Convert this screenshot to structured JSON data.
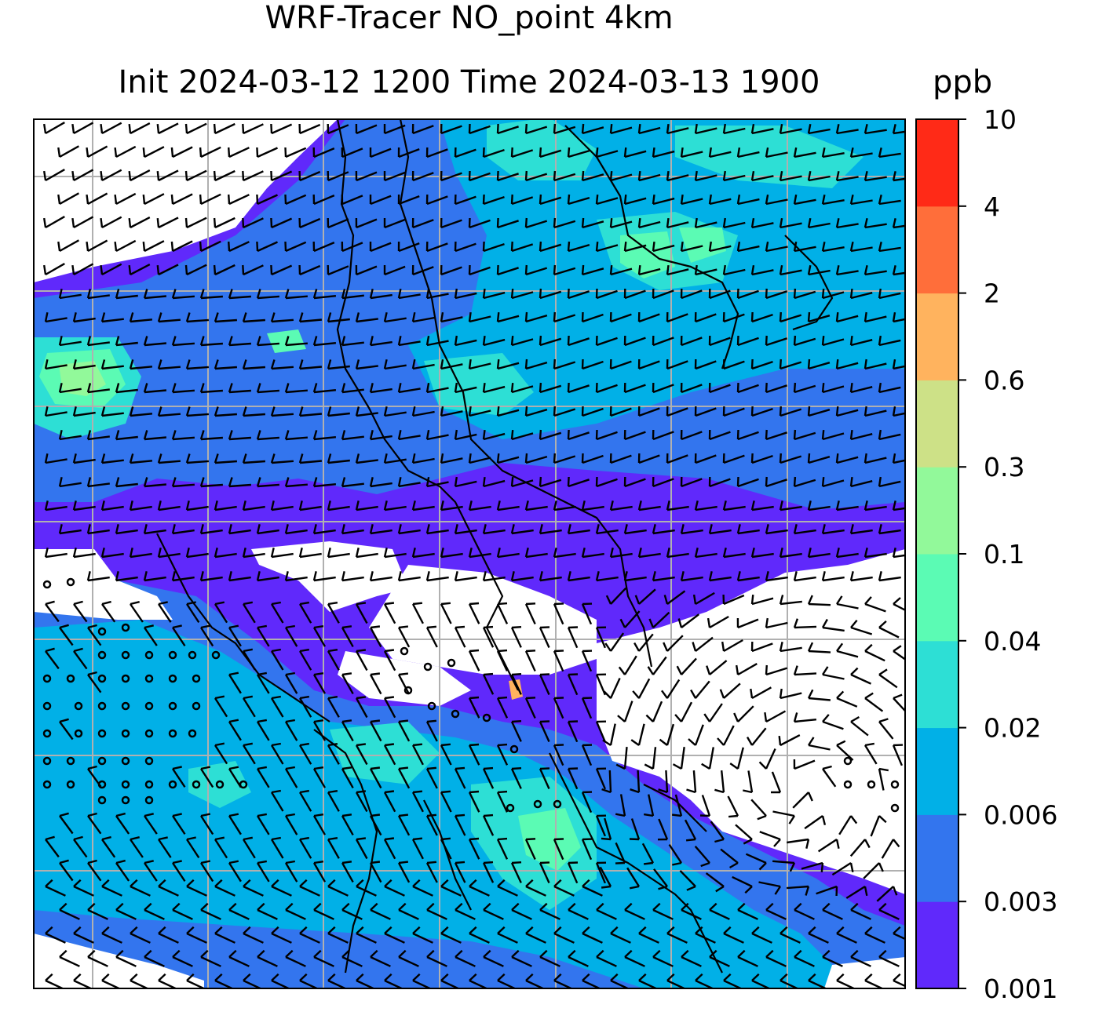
{
  "title_line1": "WRF-Tracer NO_point 4km",
  "title_line2": "Init 2024-03-12 1200 Time 2024-03-13 1900",
  "units": "ppb",
  "colorbar": {
    "levels": [
      "0.001",
      "0.003",
      "0.006",
      "0.02",
      "0.04",
      "0.1",
      "0.3",
      "0.6",
      "2",
      "4",
      "10"
    ],
    "colors": [
      "#6029fb",
      "#3375ee",
      "#01b0e7",
      "#2ddfd5",
      "#5bfbb4",
      "#92f99a",
      "#cde187",
      "#ffb35e",
      "#ff6e3a",
      "#ff2a17"
    ]
  },
  "colors": {
    "no_data": "#ffffff",
    "gridlines": "#b0b0b0",
    "coastline": "#000000",
    "wind_barbs": "#000000"
  }
}
